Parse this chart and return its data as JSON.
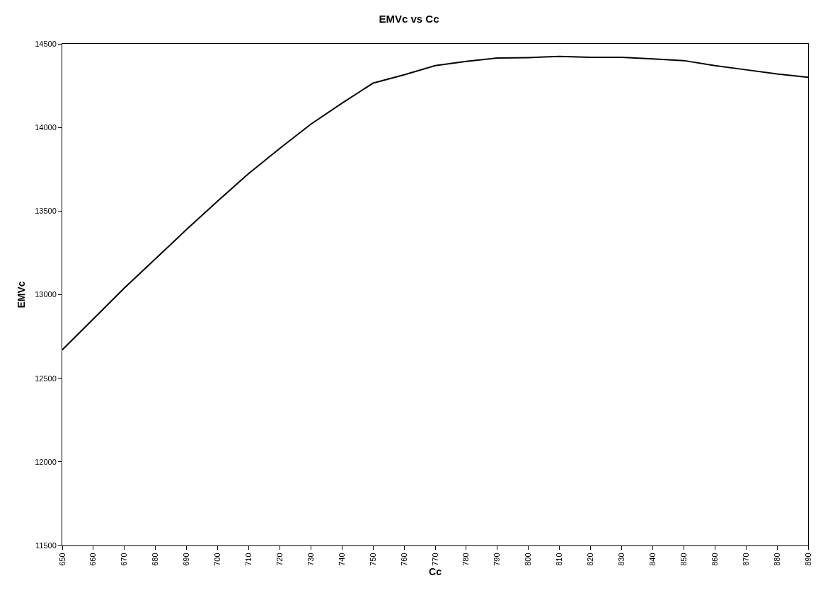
{
  "chart_data": {
    "type": "line",
    "title": "EMVc vs Cc",
    "xlabel": "Cc",
    "ylabel": "EMVc",
    "x": [
      650,
      660,
      670,
      680,
      690,
      700,
      710,
      720,
      730,
      740,
      750,
      760,
      770,
      780,
      790,
      800,
      810,
      820,
      830,
      840,
      850,
      860,
      870,
      880,
      890
    ],
    "series": [
      {
        "color": "#000000",
        "values": [
          12670,
          12855,
          13040,
          13215,
          13390,
          13560,
          13725,
          13875,
          14020,
          14145,
          14265,
          14315,
          14370,
          14395,
          14415,
          14418,
          14425,
          14420,
          14420,
          14410,
          14400,
          14370,
          14345,
          14320,
          14300
        ]
      }
    ],
    "xlim": [
      650,
      890
    ],
    "xticks": [
      650,
      660,
      670,
      680,
      690,
      700,
      710,
      720,
      730,
      740,
      750,
      760,
      770,
      780,
      790,
      800,
      810,
      820,
      830,
      840,
      850,
      860,
      870,
      880,
      890
    ],
    "ylim": [
      11500,
      14500
    ],
    "yticks": [
      11500,
      12000,
      12500,
      13000,
      13500,
      14000,
      14500
    ],
    "grid": false,
    "marker": "none",
    "line_style": "solid"
  }
}
